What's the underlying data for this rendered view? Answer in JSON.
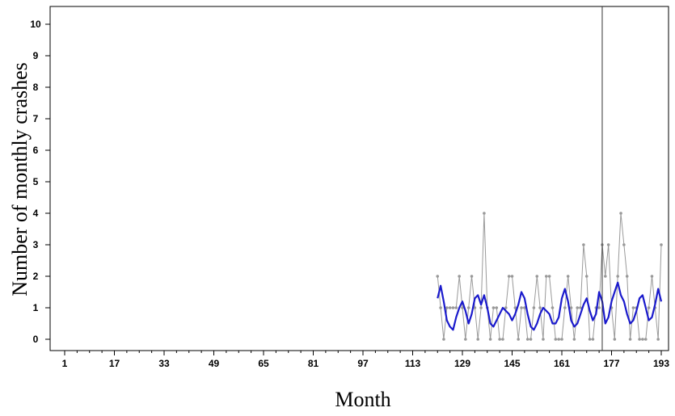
{
  "chart_data": {
    "type": "line",
    "title": "",
    "xlabel": "Month",
    "ylabel": "Number of monthly crashes",
    "xlim": [
      1,
      193
    ],
    "ylim": [
      0,
      10
    ],
    "x_ticks": [
      1,
      17,
      33,
      49,
      65,
      81,
      97,
      113,
      129,
      145,
      161,
      177,
      193
    ],
    "y_ticks": [
      0,
      1,
      2,
      3,
      4,
      5,
      6,
      7,
      8,
      9,
      10
    ],
    "intervention_month": 174,
    "grid": false,
    "legend": "none",
    "colors": {
      "observed": "#999999",
      "smoothed": "#1a1acc",
      "frame": "#000000",
      "vline": "#333333"
    },
    "series": [
      {
        "x": [
          121,
          122,
          123,
          124,
          125,
          126,
          127,
          128,
          129,
          130,
          131,
          132,
          133,
          134,
          135,
          136,
          137,
          138,
          139,
          140,
          141,
          142,
          143,
          144,
          145,
          146,
          147,
          148,
          149,
          150,
          151,
          152,
          153,
          154,
          155,
          156,
          157,
          158,
          159,
          160,
          161,
          162,
          163,
          164,
          165,
          166,
          167,
          168,
          169,
          170,
          171,
          172,
          173,
          174,
          175,
          176,
          177,
          178,
          179,
          180,
          181,
          182,
          183,
          184,
          185,
          186,
          187,
          188,
          189,
          190,
          191,
          192,
          193
        ],
        "y": [
          2,
          1,
          0,
          1,
          1,
          1,
          1,
          2,
          1,
          0,
          1,
          2,
          1,
          0,
          1,
          4,
          1,
          0,
          1,
          1,
          0,
          0,
          1,
          2,
          2,
          1,
          0,
          1,
          1,
          0,
          0,
          1,
          2,
          1,
          0,
          2,
          2,
          1,
          0,
          0,
          0,
          1,
          2,
          1,
          0,
          1,
          1,
          3,
          2,
          0,
          0,
          1,
          1,
          3,
          2,
          3,
          1,
          0,
          2,
          4,
          3,
          2,
          0,
          1,
          1,
          0,
          0,
          0,
          1,
          2,
          1,
          0,
          3
        ]
      },
      {
        "x": [
          121,
          122,
          123,
          124,
          125,
          126,
          127,
          128,
          129,
          130,
          131,
          132,
          133,
          134,
          135,
          136,
          137,
          138,
          139,
          140,
          141,
          142,
          143,
          144,
          145,
          146,
          147,
          148,
          149,
          150,
          151,
          152,
          153,
          154,
          155,
          156,
          157,
          158,
          159,
          160,
          161,
          162,
          163,
          164,
          165,
          166,
          167,
          168,
          169,
          170,
          171,
          172,
          173,
          174,
          175,
          176,
          177,
          178,
          179,
          180,
          181,
          182,
          183,
          184,
          185,
          186,
          187,
          188,
          189,
          190,
          191,
          192,
          193
        ],
        "y": [
          1.3,
          1.7,
          1.2,
          0.6,
          0.4,
          0.3,
          0.7,
          1.0,
          1.2,
          0.9,
          0.5,
          0.8,
          1.3,
          1.4,
          1.1,
          1.4,
          1.0,
          0.5,
          0.4,
          0.6,
          0.8,
          1.0,
          0.9,
          0.8,
          0.6,
          0.8,
          1.1,
          1.5,
          1.3,
          0.8,
          0.4,
          0.3,
          0.5,
          0.8,
          1.0,
          0.9,
          0.8,
          0.5,
          0.5,
          0.7,
          1.3,
          1.6,
          1.2,
          0.6,
          0.4,
          0.5,
          0.8,
          1.1,
          1.3,
          0.9,
          0.6,
          0.8,
          1.5,
          1.2,
          0.5,
          0.7,
          1.2,
          1.5,
          1.8,
          1.4,
          1.2,
          0.8,
          0.5,
          0.6,
          0.9,
          1.3,
          1.4,
          1.0,
          0.6,
          0.7,
          1.1,
          1.6,
          1.2
        ]
      }
    ]
  }
}
